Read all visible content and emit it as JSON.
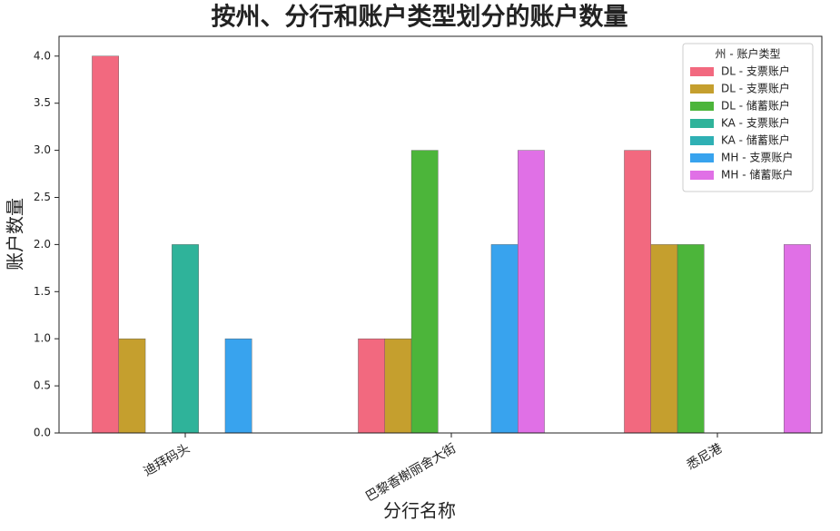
{
  "chart_data": {
    "type": "bar",
    "title": "按州、分行和账户类型划分的账户数量",
    "x_label": "分行名称",
    "y_label": "账户数量",
    "categories": [
      "迪拜码头",
      "巴黎香榭丽舍大街",
      "悉尼港"
    ],
    "legend_title": "州 - 账户类型",
    "legend_position": "upper right",
    "series": [
      {
        "name": "DL - 支票账户",
        "color": "#f2697f",
        "values": [
          4.0,
          1.0,
          3.0
        ]
      },
      {
        "name": "DL - 支票账户",
        "color": "#c59f2e",
        "values": [
          1.0,
          1.0,
          2.0
        ]
      },
      {
        "name": "DL - 储蓄账户",
        "color": "#4cb53a",
        "values": [
          null,
          3.0,
          2.0
        ]
      },
      {
        "name": "KA - 支票账户",
        "color": "#2fb39a",
        "values": [
          2.0,
          null,
          null
        ]
      },
      {
        "name": "KA - 储蓄账户",
        "color": "#2fb0b4",
        "values": [
          null,
          null,
          null
        ]
      },
      {
        "name": "MH - 支票账户",
        "color": "#38a3ee",
        "values": [
          1.0,
          2.0,
          null
        ]
      },
      {
        "name": "MH - 储蓄账户",
        "color": "#e070e6",
        "values": [
          null,
          3.0,
          2.0
        ]
      }
    ],
    "ylim": [
      0,
      4.21
    ],
    "yticks": [
      {
        "value": 0,
        "label": "0.0"
      },
      {
        "value": 0.5,
        "label": "0.5"
      },
      {
        "value": 1,
        "label": "1.0"
      },
      {
        "value": 1.5,
        "label": "1.5"
      },
      {
        "value": 2,
        "label": "2.0"
      },
      {
        "value": 2.5,
        "label": "2.5"
      },
      {
        "value": 3,
        "label": "3.0"
      },
      {
        "value": 3.5,
        "label": "3.5"
      },
      {
        "value": 4,
        "label": "4.0"
      }
    ],
    "grid": false
  }
}
